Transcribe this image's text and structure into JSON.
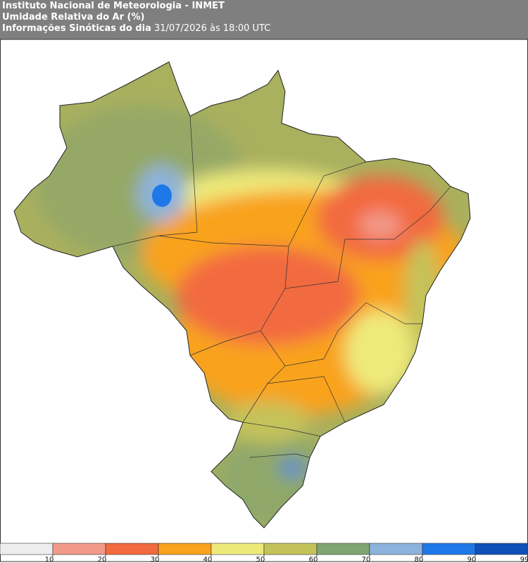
{
  "header": {
    "line1": "Instituto Nacional de Meteorologia - INMET",
    "line2": "Umidade Relativa do Ar (%)",
    "line3_label": "Informações Sinóticas do dia",
    "line3_date": "31/07/2026 às 18:00 UTC"
  },
  "colorbar": {
    "colors": [
      "#eeeeee",
      "#f29a8a",
      "#f26a3f",
      "#f9a21e",
      "#eeea7a",
      "#c4c25a",
      "#7fa572",
      "#8db3dc",
      "#1f78e8",
      "#0f4fb8"
    ],
    "ticks": [
      10,
      20,
      30,
      40,
      50,
      60,
      70,
      80,
      90,
      99
    ]
  }
}
